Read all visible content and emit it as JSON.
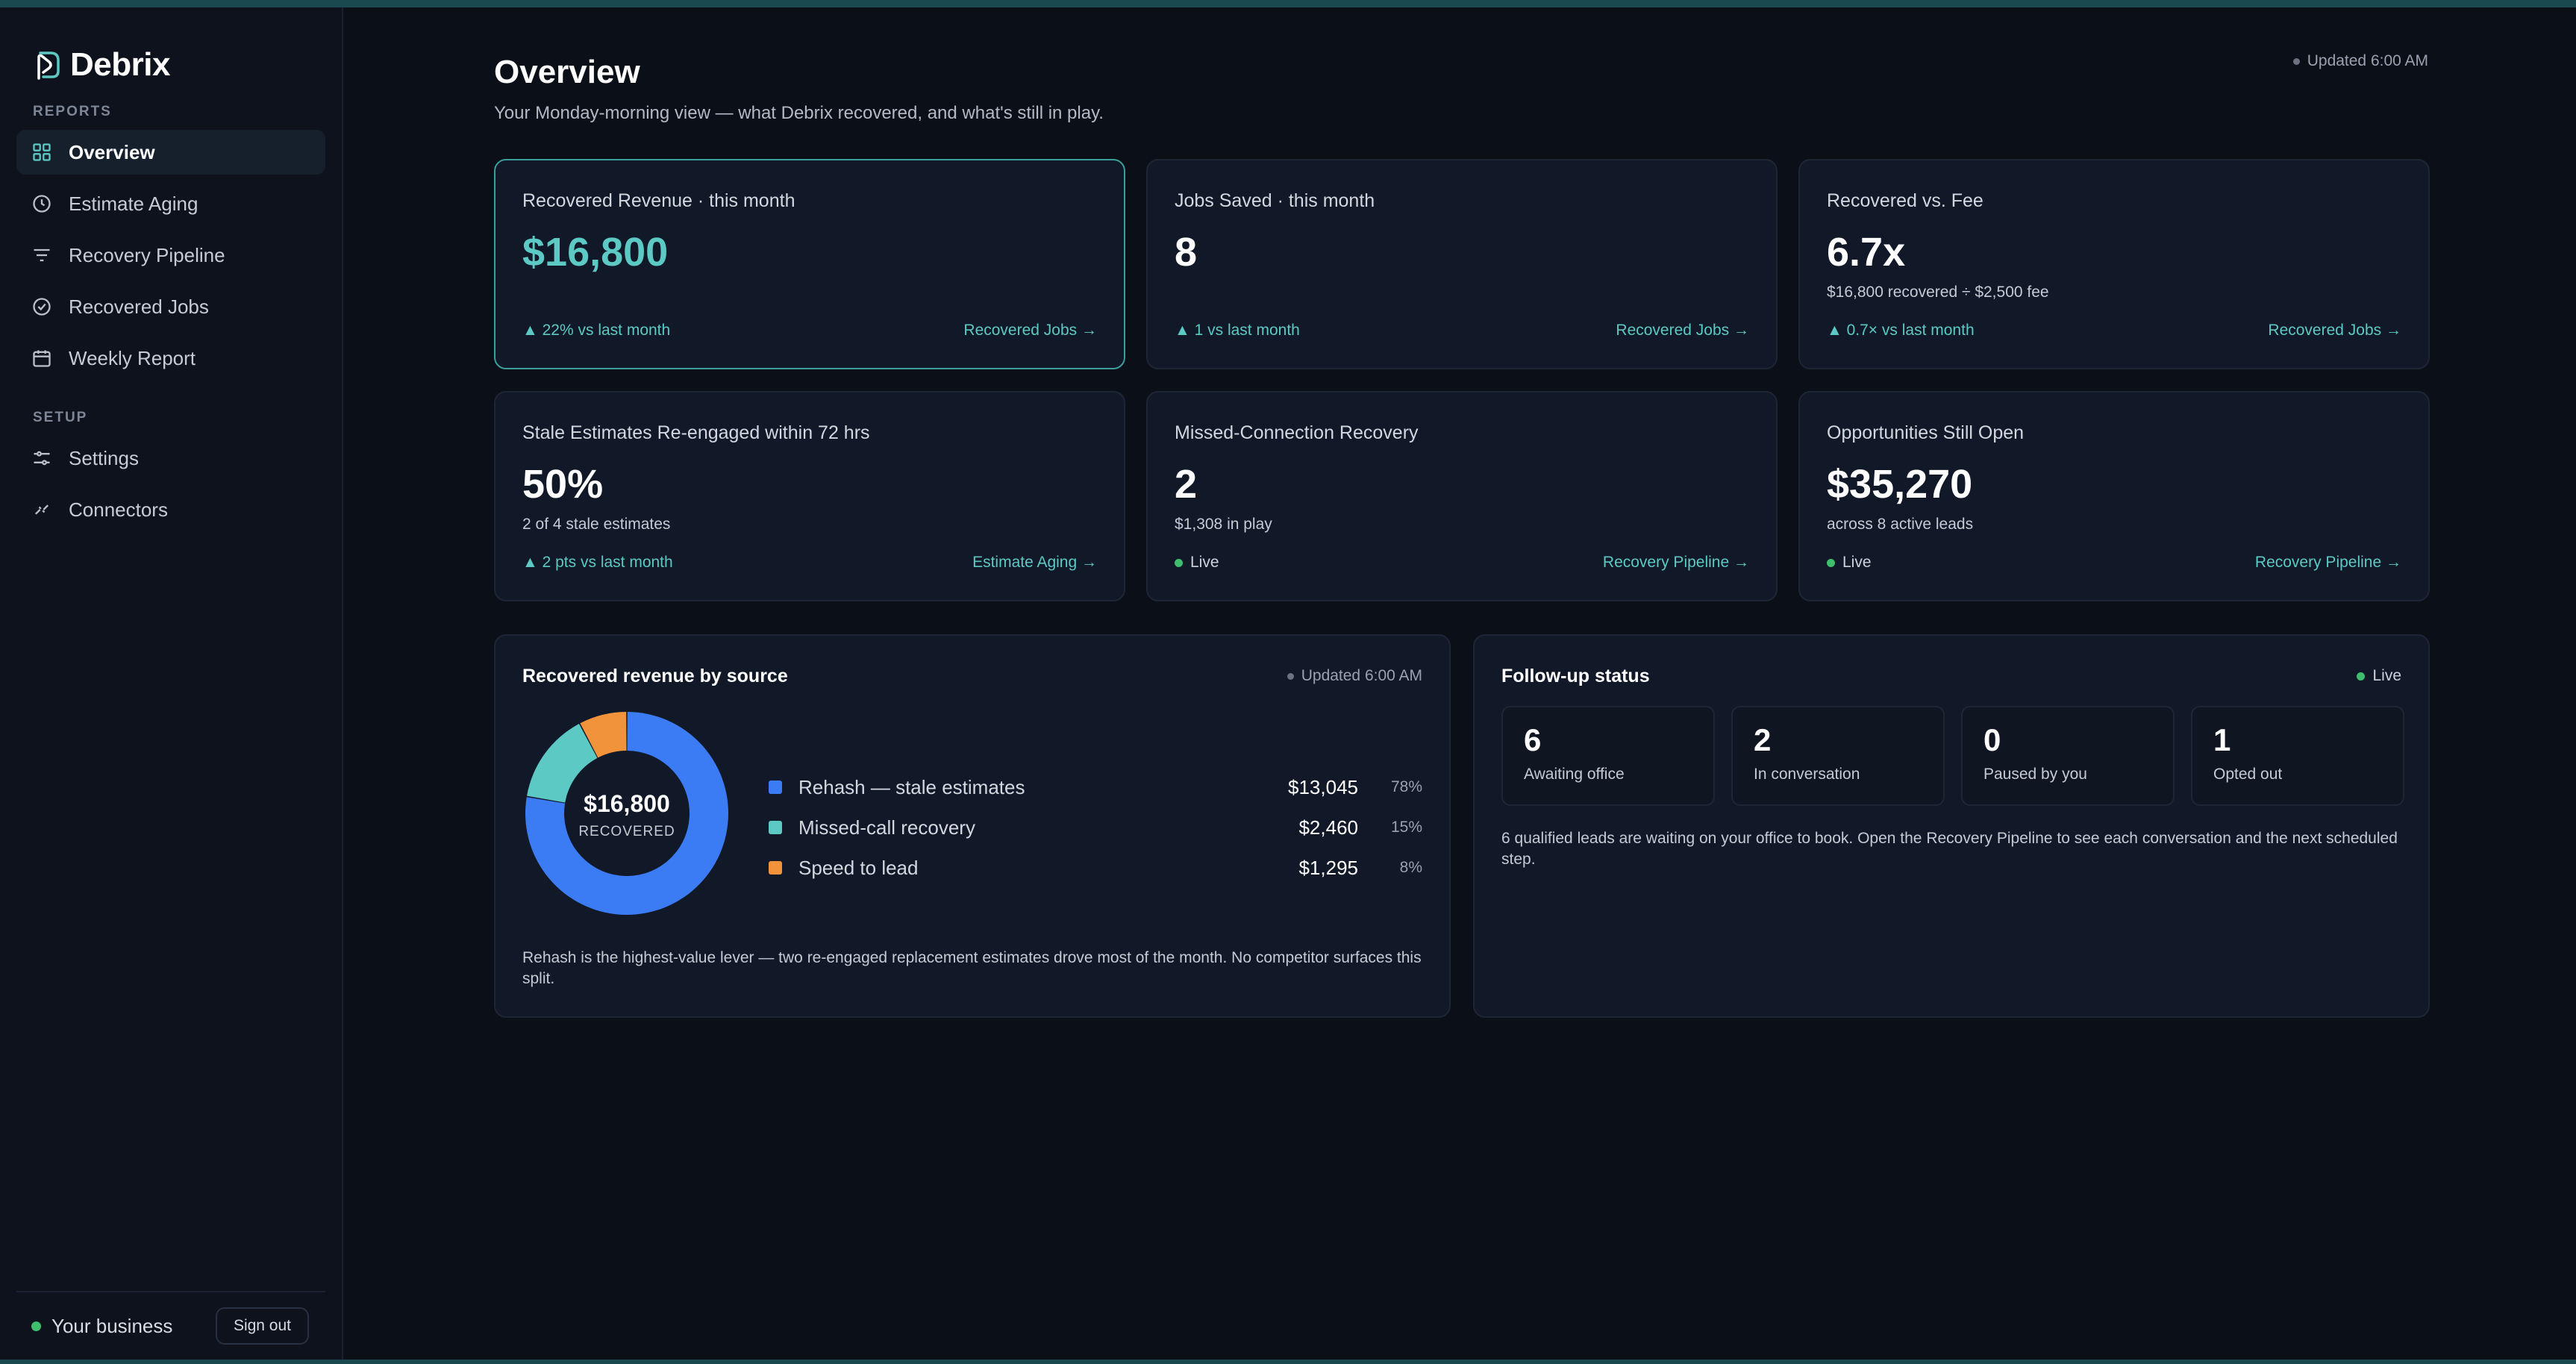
{
  "brand": {
    "name": "Debrix"
  },
  "sidebar": {
    "sections": [
      {
        "label": "REPORTS"
      },
      {
        "label": "SETUP"
      }
    ],
    "reports_items": [
      {
        "label": "Overview",
        "icon": "grid-icon"
      },
      {
        "label": "Estimate Aging",
        "icon": "clock-icon"
      },
      {
        "label": "Recovery Pipeline",
        "icon": "filter-icon"
      },
      {
        "label": "Recovered Jobs",
        "icon": "check-circle-icon"
      },
      {
        "label": "Weekly Report",
        "icon": "calendar-icon"
      }
    ],
    "setup_items": [
      {
        "label": "Settings",
        "icon": "sliders-icon"
      },
      {
        "label": "Connectors",
        "icon": "link-icon"
      }
    ],
    "footer": {
      "business": "Your business",
      "sign_out": "Sign out"
    }
  },
  "header": {
    "title": "Overview",
    "subtitle": "Your Monday-morning view — what Debrix recovered, and what's still in play.",
    "updated": "Updated 6:00 AM"
  },
  "kpis": [
    {
      "label": "Recovered Revenue · this month",
      "value": "$16,800",
      "sub": "",
      "trend": "▲ 22% vs last month",
      "link": "Recovered Jobs →"
    },
    {
      "label": "Jobs Saved · this month",
      "value": "8",
      "sub": "",
      "trend": "▲ 1 vs last month",
      "link": "Recovered Jobs →"
    },
    {
      "label": "Recovered vs. Fee",
      "value": "6.7x",
      "sub": "$16,800 recovered ÷ $2,500 fee",
      "trend": "▲ 0.7× vs last month",
      "link": "Recovered Jobs →"
    },
    {
      "label": "Stale Estimates Re-engaged within 72 hrs",
      "value": "50%",
      "sub": "2 of 4 stale estimates",
      "trend": "▲ 2 pts vs last month",
      "link": "Estimate Aging →"
    },
    {
      "label": "Missed-Connection Recovery",
      "value": "2",
      "sub": "$1,308 in play",
      "trend": "Live",
      "link": "Recovery Pipeline →"
    },
    {
      "label": "Opportunities Still Open",
      "value": "$35,270",
      "sub": "across 8 active leads",
      "trend": "Live",
      "link": "Recovery Pipeline →"
    }
  ],
  "revenue_panel": {
    "title": "Recovered revenue by source",
    "updated": "Updated 6:00 AM",
    "center_value": "$16,800",
    "center_label": "RECOVERED",
    "note": "Rehash is the highest-value lever — two re-engaged replacement estimates drove most of the month. No competitor surfaces this split.",
    "rows": [
      {
        "name": "Rehash — stale estimates",
        "amount": "$13,045",
        "pct": "78%"
      },
      {
        "name": "Missed-call recovery",
        "amount": "$2,460",
        "pct": "15%"
      },
      {
        "name": "Speed to lead",
        "amount": "$1,295",
        "pct": "8%"
      }
    ]
  },
  "chart_data": {
    "type": "pie",
    "title": "Recovered revenue by source",
    "categories": [
      "Rehash — stale estimates",
      "Missed-call recovery",
      "Speed to lead"
    ],
    "values": [
      13045,
      2460,
      1295
    ],
    "percentages": [
      78,
      15,
      8
    ],
    "colors": [
      "#3b7cf4",
      "#5cc9c4",
      "#f0933a"
    ],
    "donut": true,
    "center_text": "$16,800",
    "legend": "right"
  },
  "followup_panel": {
    "title": "Follow-up status",
    "live": "Live",
    "stats": [
      {
        "value": "6",
        "label": "Awaiting office"
      },
      {
        "value": "2",
        "label": "In conversation"
      },
      {
        "value": "0",
        "label": "Paused by you"
      },
      {
        "value": "1",
        "label": "Opted out"
      }
    ],
    "note": "6 qualified leads are waiting on your office to book. Open the Recovery Pipeline to see each conversation and the next scheduled step."
  },
  "colors": {
    "accent": "#5cc9c4",
    "background": "#0b0f18",
    "card": "#111827",
    "live": "#3fbf6e"
  }
}
